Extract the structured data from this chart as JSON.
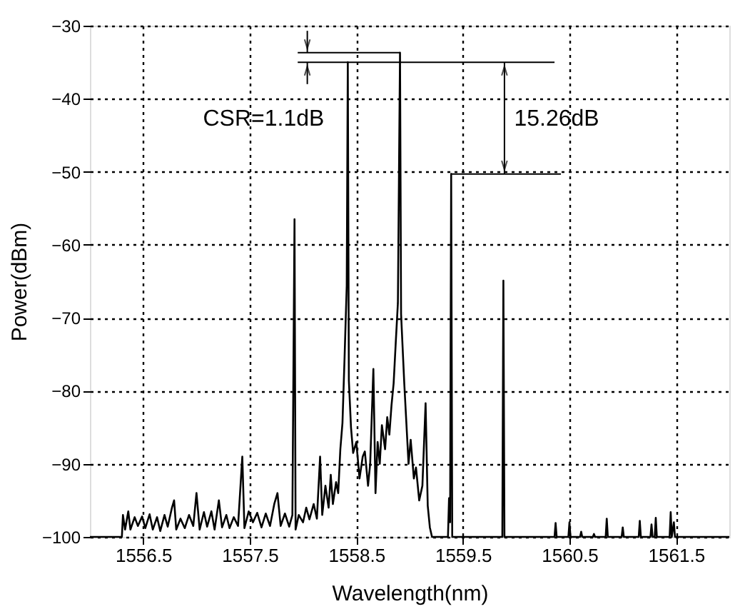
{
  "chart_data": {
    "type": "line",
    "xlabel": "Wavelength(nm)",
    "ylabel": "Power(dBm)",
    "xlim": [
      1556,
      1562
    ],
    "xticks": [
      1556.5,
      1557.5,
      1558.5,
      1559.5,
      1560.5,
      1561.5
    ],
    "ylim": [
      -100,
      -30
    ],
    "yticks": [
      -100,
      -90,
      -80,
      -70,
      -60,
      -50,
      -40,
      -30
    ],
    "grid": true,
    "line_style": "solid",
    "marker": "none",
    "annotations": [
      "CSR=1.1dB",
      "15.26dB"
    ],
    "series": [
      {
        "color": "#000000",
        "x": [
          1556.0,
          1556.3,
          1556.31,
          1556.33,
          1556.36,
          1556.38,
          1556.42,
          1556.45,
          1556.49,
          1556.52,
          1556.56,
          1556.59,
          1556.63,
          1556.66,
          1556.7,
          1556.73,
          1556.77,
          1556.79,
          1556.81,
          1556.85,
          1556.89,
          1556.93,
          1556.97,
          1557.0,
          1557.03,
          1557.07,
          1557.1,
          1557.14,
          1557.17,
          1557.21,
          1557.24,
          1557.28,
          1557.31,
          1557.35,
          1557.39,
          1557.43,
          1557.45,
          1557.49,
          1557.53,
          1557.57,
          1557.61,
          1557.65,
          1557.69,
          1557.73,
          1557.76,
          1557.79,
          1557.83,
          1557.87,
          1557.9,
          1557.92,
          1557.93,
          1557.96,
          1558.0,
          1558.03,
          1558.06,
          1558.1,
          1558.13,
          1558.16,
          1558.18,
          1558.21,
          1558.24,
          1558.26,
          1558.28,
          1558.31,
          1558.33,
          1558.35,
          1558.37,
          1558.39,
          1558.41,
          1558.42,
          1558.43,
          1558.45,
          1558.47,
          1558.5,
          1558.53,
          1558.56,
          1558.58,
          1558.61,
          1558.63,
          1558.66,
          1558.68,
          1558.7,
          1558.72,
          1558.74,
          1558.77,
          1558.79,
          1558.81,
          1558.83,
          1558.85,
          1558.87,
          1558.89,
          1558.91,
          1558.92,
          1558.95,
          1558.97,
          1558.99,
          1559.01,
          1559.04,
          1559.06,
          1559.09,
          1559.12,
          1559.15,
          1559.17,
          1559.19,
          1559.21,
          1559.36,
          1559.37,
          1559.38,
          1559.39,
          1559.4,
          1559.87,
          1559.88,
          1559.89,
          1560.36,
          1560.37,
          1560.38,
          1560.49,
          1560.5,
          1560.51,
          1560.6,
          1560.61,
          1560.62,
          1560.72,
          1560.73,
          1560.74,
          1560.84,
          1560.85,
          1560.86,
          1560.99,
          1561.0,
          1561.01,
          1561.15,
          1561.16,
          1561.17,
          1561.26,
          1561.27,
          1561.28,
          1561.3,
          1561.31,
          1561.32,
          1561.44,
          1561.45,
          1561.46,
          1561.48,
          1561.49,
          1562.0
        ],
        "values": [
          -100,
          -100,
          -97,
          -99,
          -96.5,
          -99,
          -97.3,
          -98.5,
          -97.2,
          -98.8,
          -96.9,
          -99,
          -97.3,
          -99.2,
          -97,
          -98.6,
          -96,
          -95,
          -99,
          -97.5,
          -98.8,
          -97,
          -98.5,
          -94,
          -99,
          -96.6,
          -98.6,
          -96.5,
          -99,
          -95,
          -98.7,
          -97,
          -98.8,
          -97.3,
          -98.5,
          -89,
          -98.8,
          -96.5,
          -98,
          -96.7,
          -98.7,
          -96.8,
          -98.5,
          -95.5,
          -94,
          -98.5,
          -96.8,
          -98.6,
          -97,
          -56.5,
          -99,
          -97,
          -98,
          -96,
          -97.6,
          -95.5,
          -97.5,
          -89,
          -97,
          -93,
          -96,
          -91.5,
          -95.5,
          -92.5,
          -94,
          -88,
          -84.4,
          -75.3,
          -65.6,
          -35.0,
          -78.6,
          -85,
          -88.5,
          -87,
          -92,
          -89,
          -88.3,
          -93,
          -90,
          -77,
          -94,
          -87,
          -90,
          -84.7,
          -88,
          -83.6,
          -86,
          -82,
          -79,
          -73.4,
          -68,
          -33.7,
          -69.5,
          -79,
          -84.5,
          -90,
          -86.7,
          -92,
          -90.5,
          -95,
          -93,
          -81.7,
          -95.7,
          -98.7,
          -100,
          -100,
          -94.7,
          -98,
          -50.3,
          -100,
          -100,
          -64.9,
          -100,
          -100,
          -98.1,
          -100,
          -100,
          -98,
          -100,
          -100,
          -99.3,
          -100,
          -100,
          -99.6,
          -100,
          -100,
          -97.5,
          -100,
          -100,
          -98.7,
          -100,
          -100,
          -97.8,
          -100,
          -100,
          -98.3,
          -100,
          -100,
          -97.4,
          -100,
          -100,
          -96.6,
          -100,
          -98,
          -100,
          -100
        ]
      }
    ]
  }
}
